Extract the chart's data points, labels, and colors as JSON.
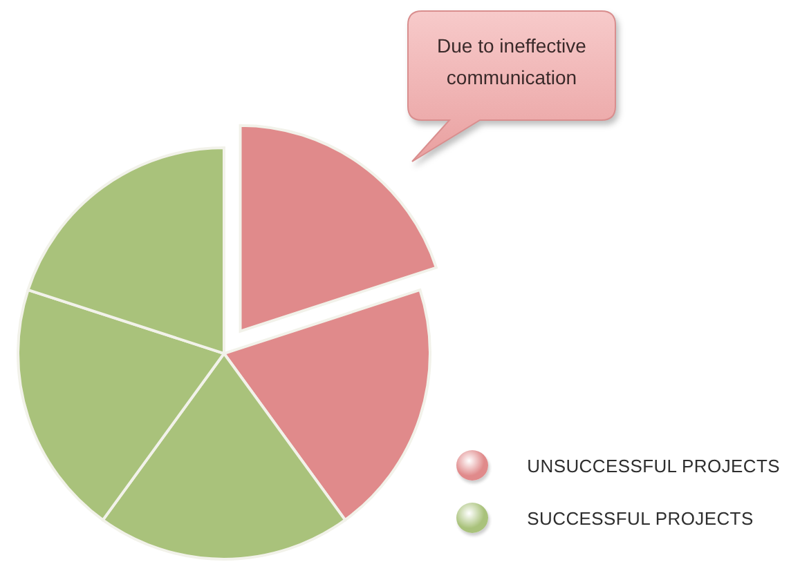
{
  "chart_data": {
    "type": "pie",
    "categories": [
      "UNSUCCESSFUL PROJECTS",
      null,
      "SUCCESSFUL PROJECTS",
      null,
      null
    ],
    "values": [
      20,
      20,
      20,
      20,
      20
    ],
    "colors": [
      "#e08a8b",
      "#e08a8b",
      "#a9c27b",
      "#a9c27b",
      "#a9c27b"
    ],
    "legend": "bottom right",
    "annotations": [
      "Due to ineffective communication"
    ]
  }
}
